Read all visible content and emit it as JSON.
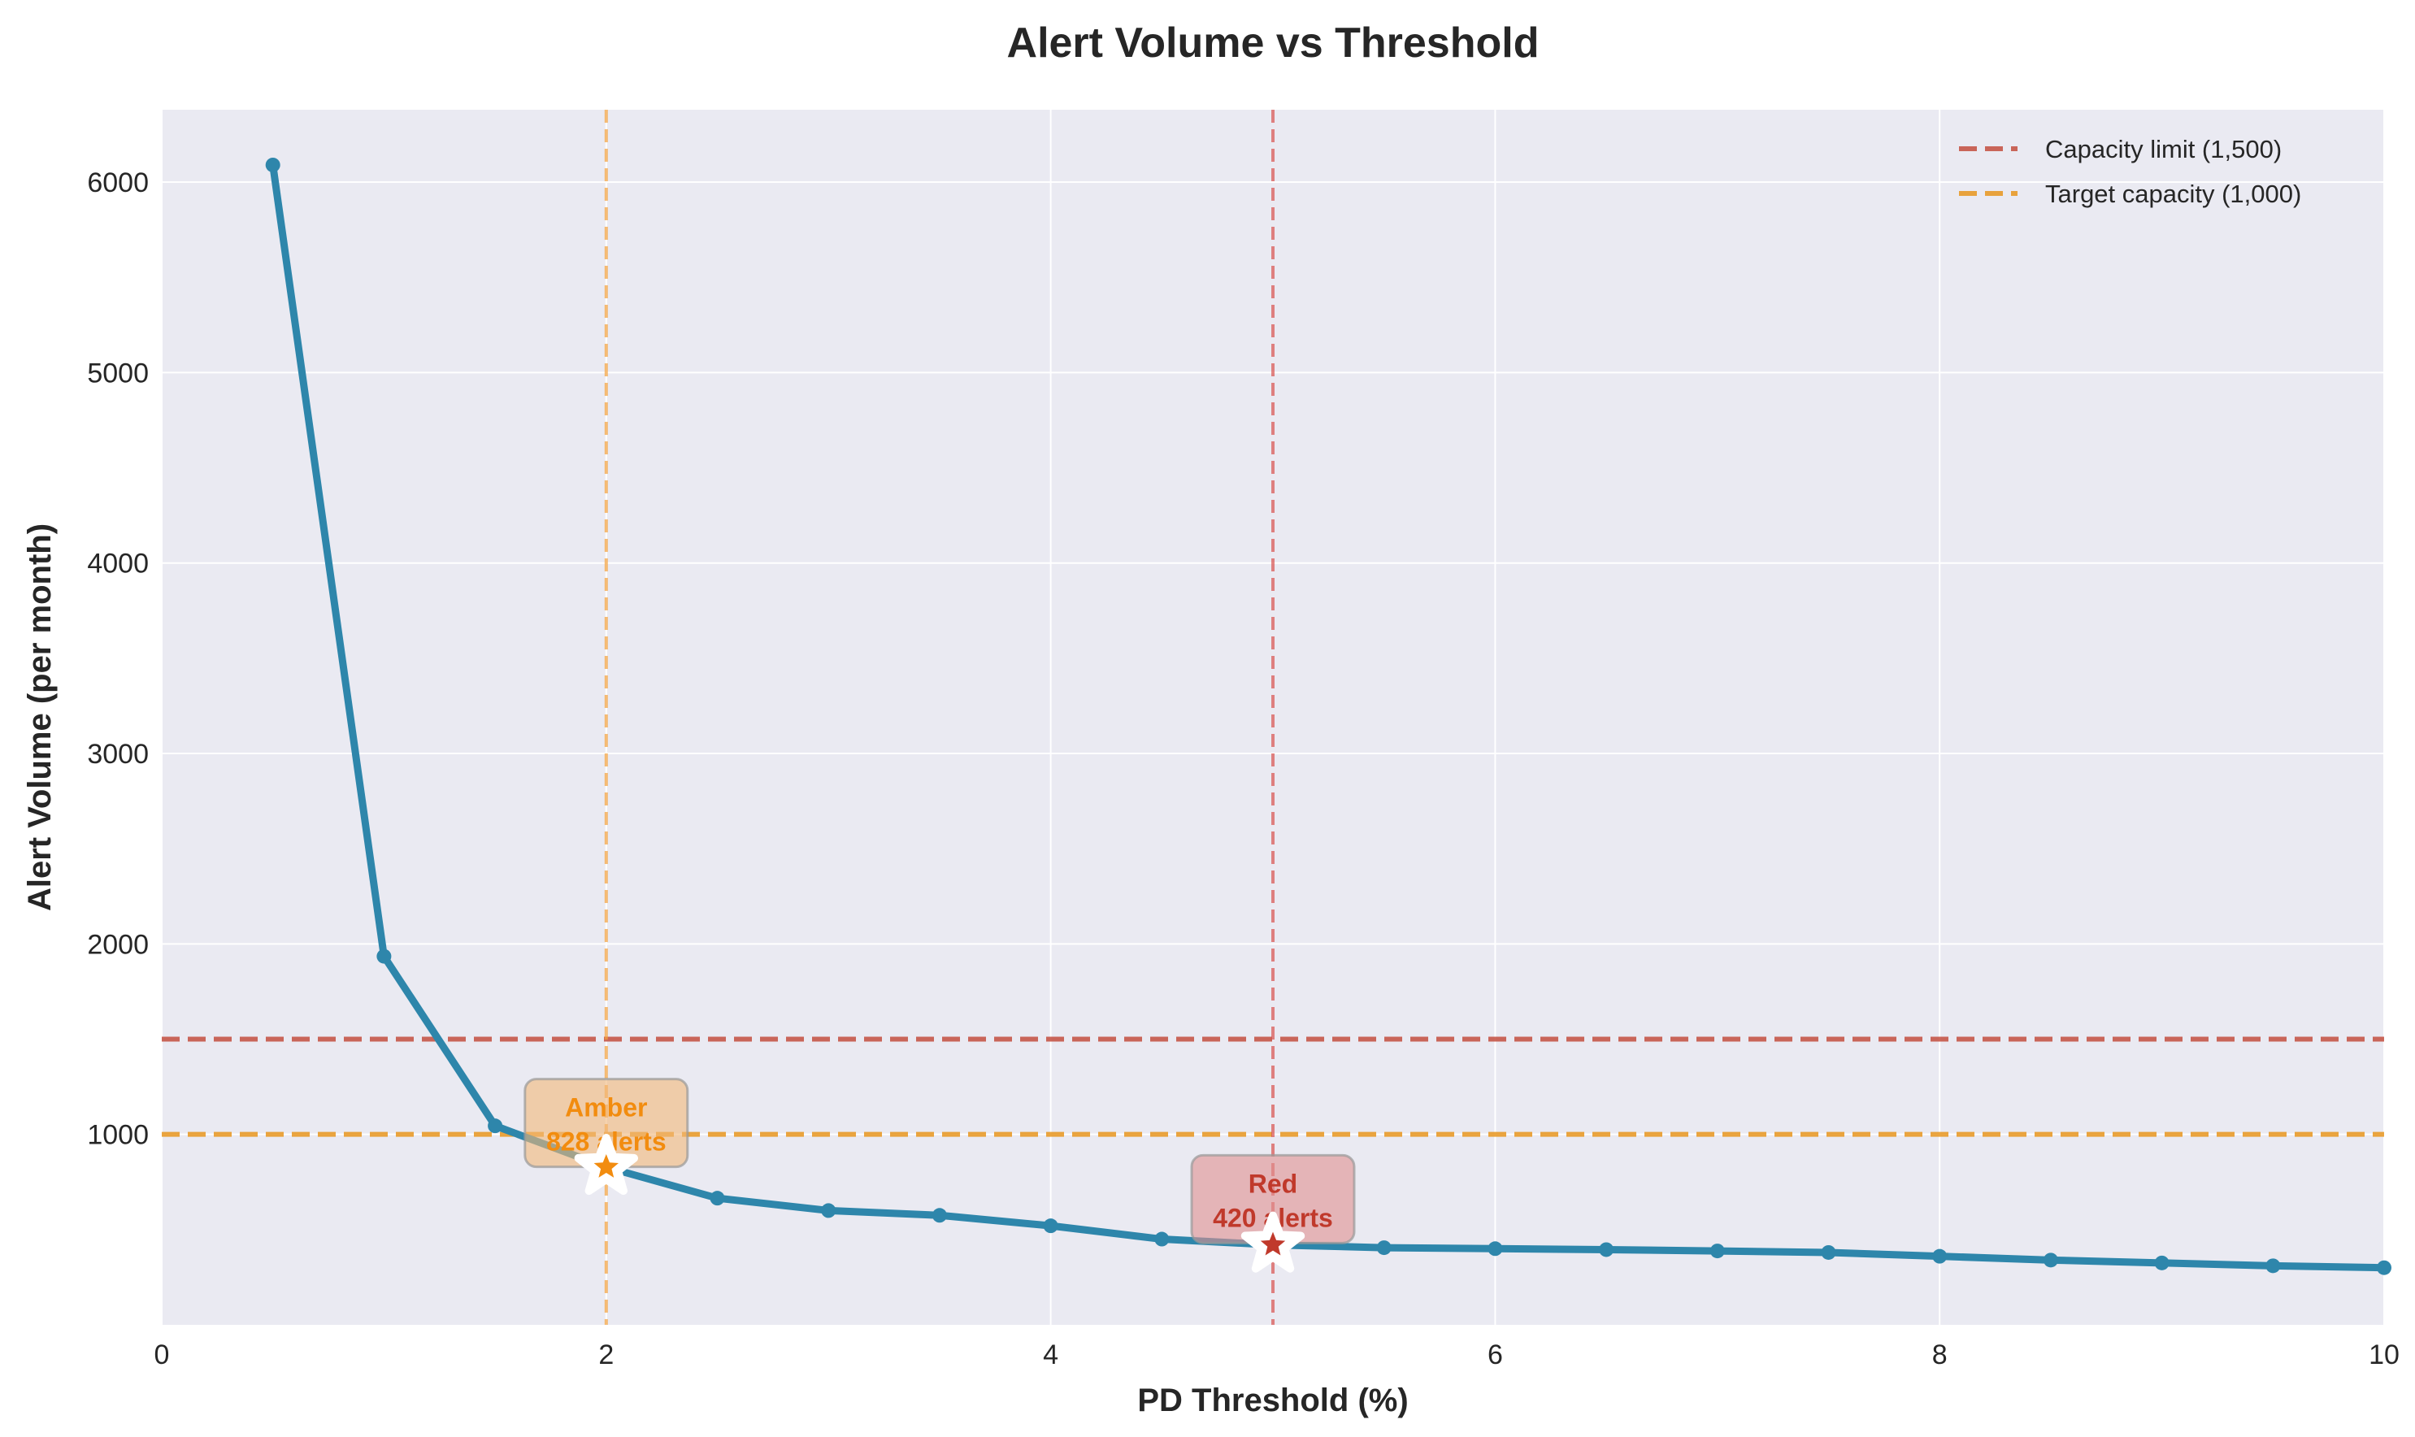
{
  "chart_data": {
    "type": "line",
    "title": "Alert Volume vs Threshold",
    "xlabel": "PD Threshold (%)",
    "ylabel": "Alert Volume (per month)",
    "xlim": [
      0,
      10
    ],
    "ylim": [
      0,
      6380
    ],
    "x_ticks": [
      0,
      2,
      4,
      6,
      8,
      10
    ],
    "y_ticks": [
      1000,
      2000,
      3000,
      4000,
      5000,
      6000
    ],
    "grid": true,
    "legend_position": "top-right",
    "series": [
      {
        "color": "#2e86ab",
        "x": [
          0.5,
          1.0,
          1.5,
          2.0,
          2.5,
          3.0,
          3.5,
          4.0,
          4.5,
          5.0,
          5.5,
          6.0,
          6.5,
          7.0,
          7.5,
          8.0,
          8.5,
          9.0,
          9.5,
          10.0
        ],
        "y": [
          6090,
          1935,
          1045,
          828,
          665,
          600,
          575,
          520,
          450,
          420,
          405,
          400,
          395,
          388,
          380,
          360,
          340,
          325,
          310,
          300
        ]
      }
    ],
    "reference_lines": [
      {
        "orientation": "horizontal",
        "value": 1500,
        "label": "Capacity limit (1,500)",
        "color": "#c44e3f",
        "in_legend": true
      },
      {
        "orientation": "horizontal",
        "value": 1000,
        "label": "Target capacity (1,000)",
        "color": "#e8961e",
        "in_legend": true
      },
      {
        "orientation": "vertical",
        "value": 2,
        "color": "#f4a13a",
        "in_legend": false
      },
      {
        "orientation": "vertical",
        "value": 5,
        "color": "#d9534f",
        "in_legend": false
      }
    ],
    "annotations": [
      {
        "name": "amber",
        "x": 2,
        "y": 828,
        "line1": "Amber",
        "line2": "828 alerts",
        "color": "#f28c0f",
        "box_color": "#f1b878",
        "marker_color": "#f28c0f",
        "box_center_y": 1060
      },
      {
        "name": "red",
        "x": 5,
        "y": 420,
        "line1": "Red",
        "line2": "420 alerts",
        "color": "#c0392b",
        "box_color": "#e09090",
        "marker_color": "#c0392b",
        "box_center_y": 660
      }
    ]
  }
}
